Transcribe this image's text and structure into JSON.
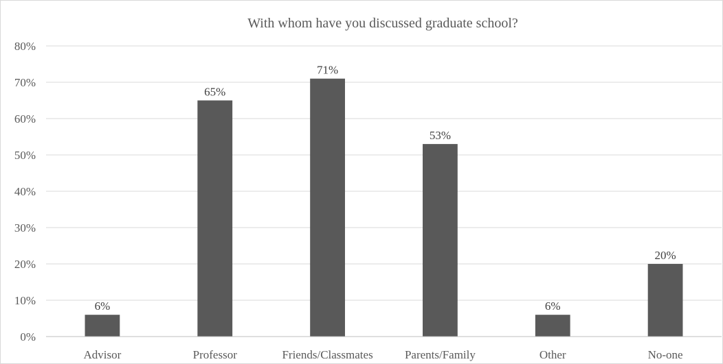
{
  "chart_data": {
    "type": "bar",
    "title": "With whom have you discussed graduate school?",
    "xlabel": "",
    "ylabel": "",
    "categories": [
      "Advisor",
      "Professor",
      "Friends/Classmates",
      "Parents/Family",
      "Other",
      "No-one"
    ],
    "values": [
      6,
      65,
      71,
      53,
      6,
      20
    ],
    "data_labels": [
      "6%",
      "65%",
      "71%",
      "53%",
      "6%",
      "20%"
    ],
    "ylim": [
      0,
      80
    ],
    "yticks": [
      0,
      10,
      20,
      30,
      40,
      50,
      60,
      70,
      80
    ],
    "ytick_labels": [
      "0%",
      "10%",
      "20%",
      "30%",
      "40%",
      "50%",
      "60%",
      "70%",
      "80%"
    ],
    "grid": true,
    "legend": "none",
    "colors": {
      "bar": "#595959",
      "grid": "#d9d9d9",
      "axis": "#bfbfbf",
      "text": "#595959"
    }
  }
}
